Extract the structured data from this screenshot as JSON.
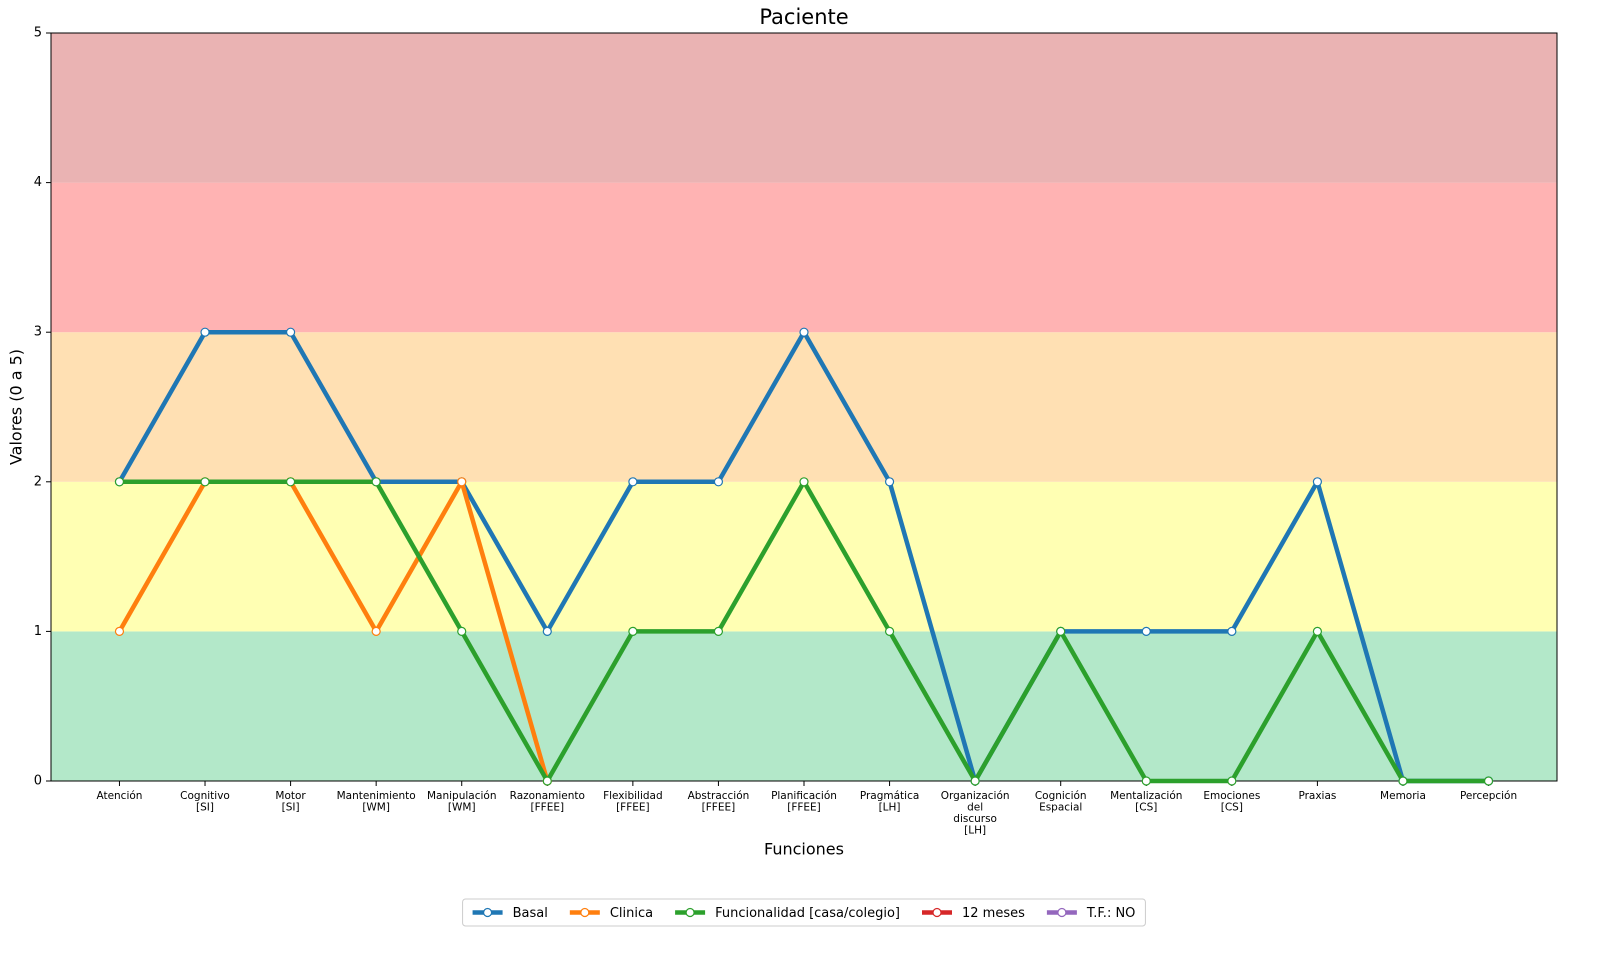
{
  "chart_data": {
    "type": "line",
    "title": "Paciente",
    "xlabel": "Funciones",
    "ylabel": "Valores (0 a 5)",
    "categories": [
      [
        "Atención"
      ],
      [
        "Cognitivo",
        "[SI]"
      ],
      [
        "Motor",
        "[SI]"
      ],
      [
        "Mantenimiento",
        "[WM]"
      ],
      [
        "Manipulación",
        "[WM]"
      ],
      [
        "Razonamiento",
        "[FFEE]"
      ],
      [
        "Flexibilidad",
        "[FFEE]"
      ],
      [
        "Abstracción",
        "[FFEE]"
      ],
      [
        "Planificación",
        "[FFEE]"
      ],
      [
        "Pragmática",
        "[LH]"
      ],
      [
        "Organización",
        "del",
        "discurso",
        "[LH]"
      ],
      [
        "Cognición",
        "Espacial"
      ],
      [
        "Mentalización",
        "[CS]"
      ],
      [
        "Emociones",
        "[CS]"
      ],
      [
        "Praxias"
      ],
      [
        "Memoria"
      ],
      [
        "Percepción"
      ]
    ],
    "category_colors": [
      "#ff9900",
      "#ff0000",
      "#ff0000",
      "#ff9900",
      "#ff9900",
      "#ffff00",
      "#ff9900",
      "#ff9900",
      "#ff0000",
      "#ff9900",
      "#00b050",
      "#ffff00",
      "#ffff00",
      "#ffff00",
      "#ff9900",
      "#00b050",
      "#00b050"
    ],
    "series": [
      {
        "name": "Basal",
        "color": "#1f77b4",
        "values": [
          2,
          3,
          3,
          2,
          2,
          1,
          2,
          2,
          3,
          2,
          0,
          1,
          1,
          1,
          2,
          0,
          0
        ]
      },
      {
        "name": "Clinica",
        "color": "#ff7f0e",
        "values": [
          1,
          2,
          2,
          1,
          2,
          0,
          null,
          null,
          null,
          null,
          null,
          null,
          null,
          null,
          null,
          null,
          null
        ]
      },
      {
        "name": "Funcionalidad [casa/colegio]",
        "color": "#2ca02c",
        "values": [
          2,
          2,
          2,
          2,
          1,
          0,
          1,
          1,
          2,
          1,
          0,
          1,
          0,
          0,
          1,
          0,
          0
        ]
      },
      {
        "name": "12 meses",
        "color": "#d62728",
        "values": [
          null,
          null,
          null,
          null,
          null,
          null,
          null,
          null,
          null,
          null,
          null,
          null,
          null,
          null,
          null,
          null,
          null
        ]
      },
      {
        "name": "T.F.: NO",
        "color": "#9467bd",
        "values": [
          null,
          null,
          null,
          null,
          null,
          null,
          null,
          null,
          null,
          null,
          null,
          null,
          null,
          null,
          null,
          null,
          null
        ]
      }
    ],
    "bands": [
      {
        "from": 0,
        "to": 1,
        "color": "#b3e8c9"
      },
      {
        "from": 1,
        "to": 2,
        "color": "#ffffb3"
      },
      {
        "from": 2,
        "to": 3,
        "color": "#ffe0b3"
      },
      {
        "from": 3,
        "to": 4,
        "color": "#ffb3b3"
      },
      {
        "from": 4,
        "to": 5,
        "color": "#eab3b3"
      }
    ],
    "ylim": [
      0,
      5
    ],
    "yticks": [
      0,
      1,
      2,
      3,
      4,
      5
    ],
    "legend": "bottom"
  }
}
